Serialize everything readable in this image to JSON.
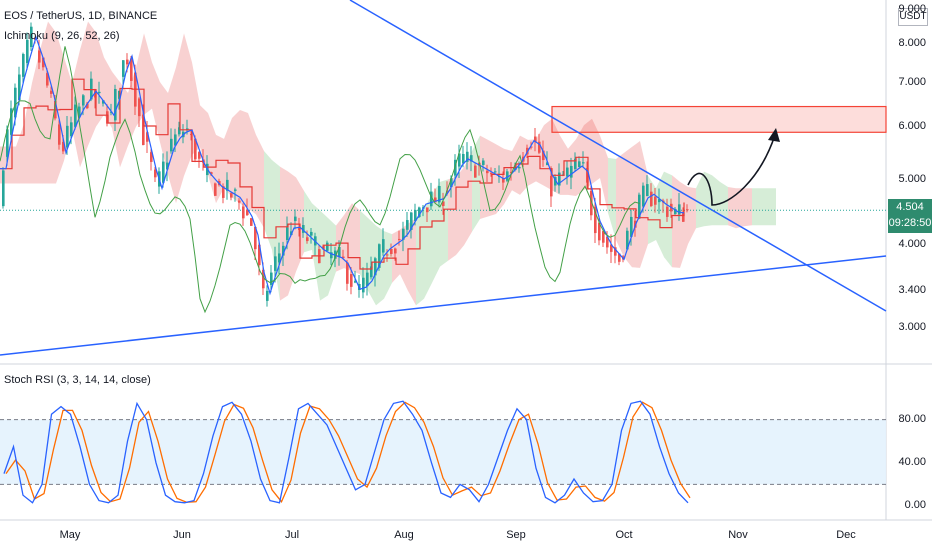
{
  "header": {
    "symbol_line": "EOS / TetherUS, 1D, BINANCE",
    "indicator_line": "Ichimoku (9, 26, 52, 26)",
    "currency": "USDT"
  },
  "price_badge": {
    "price": "4.504",
    "countdown": "09:28:50"
  },
  "rsi_panel": {
    "title": "Stoch RSI (3, 3, 14, 14, close)"
  },
  "colors": {
    "up": "#26a69a",
    "down": "#ef5350",
    "trendline": "#2962ff",
    "tenkan": "#2962ff",
    "kijun": "#e53935",
    "chikou": "#43a047",
    "cloud_bull": "#a5d6a7",
    "cloud_bear": "#ef9a9a",
    "zone": "#f44336",
    "k_line": "#2962ff",
    "d_line": "#ff6d00",
    "rsi_band": "#e3f2fd"
  },
  "chart_data": [
    {
      "type": "candlestick",
      "x_labels": [
        "May",
        "Jun",
        "Jul",
        "Aug",
        "Sep",
        "Oct",
        "Nov",
        "Dec"
      ],
      "y_ticks": [
        "9.000",
        "8.000",
        "7.000",
        "6.000",
        "5.000",
        "4.000",
        "3.400",
        "3.000"
      ],
      "ylim": [
        2.7,
        9.2
      ],
      "log_scale": true,
      "current_price": 4.504,
      "resistance_zone": [
        5.9,
        6.45
      ],
      "key_levels": {
        "low": 2.96,
        "high_peak": 6.3,
        "sep_low": 3.68
      }
    },
    {
      "type": "line",
      "title": "Stoch RSI (3, 3, 14, 14, close)",
      "y_ticks": [
        "80.00",
        "40.00",
        "0.00"
      ],
      "ylim": [
        0,
        100
      ],
      "bands": [
        20,
        80
      ],
      "series": [
        {
          "values": [
            30,
            55,
            10,
            3,
            20,
            85,
            92,
            85,
            55,
            20,
            5,
            3,
            10,
            60,
            95,
            80,
            40,
            10,
            4,
            3,
            5,
            30,
            65,
            92,
            96,
            85,
            60,
            25,
            5,
            3,
            45,
            90,
            95,
            85,
            75,
            55,
            35,
            15,
            20,
            50,
            80,
            95,
            97,
            85,
            70,
            40,
            12,
            8,
            20,
            15,
            4,
            20,
            45,
            70,
            90,
            80,
            35,
            8,
            3,
            10,
            25,
            12,
            4,
            5,
            20,
            70,
            95,
            97,
            85,
            55,
            30,
            12,
            3
          ]
        }
      ]
    }
  ]
}
